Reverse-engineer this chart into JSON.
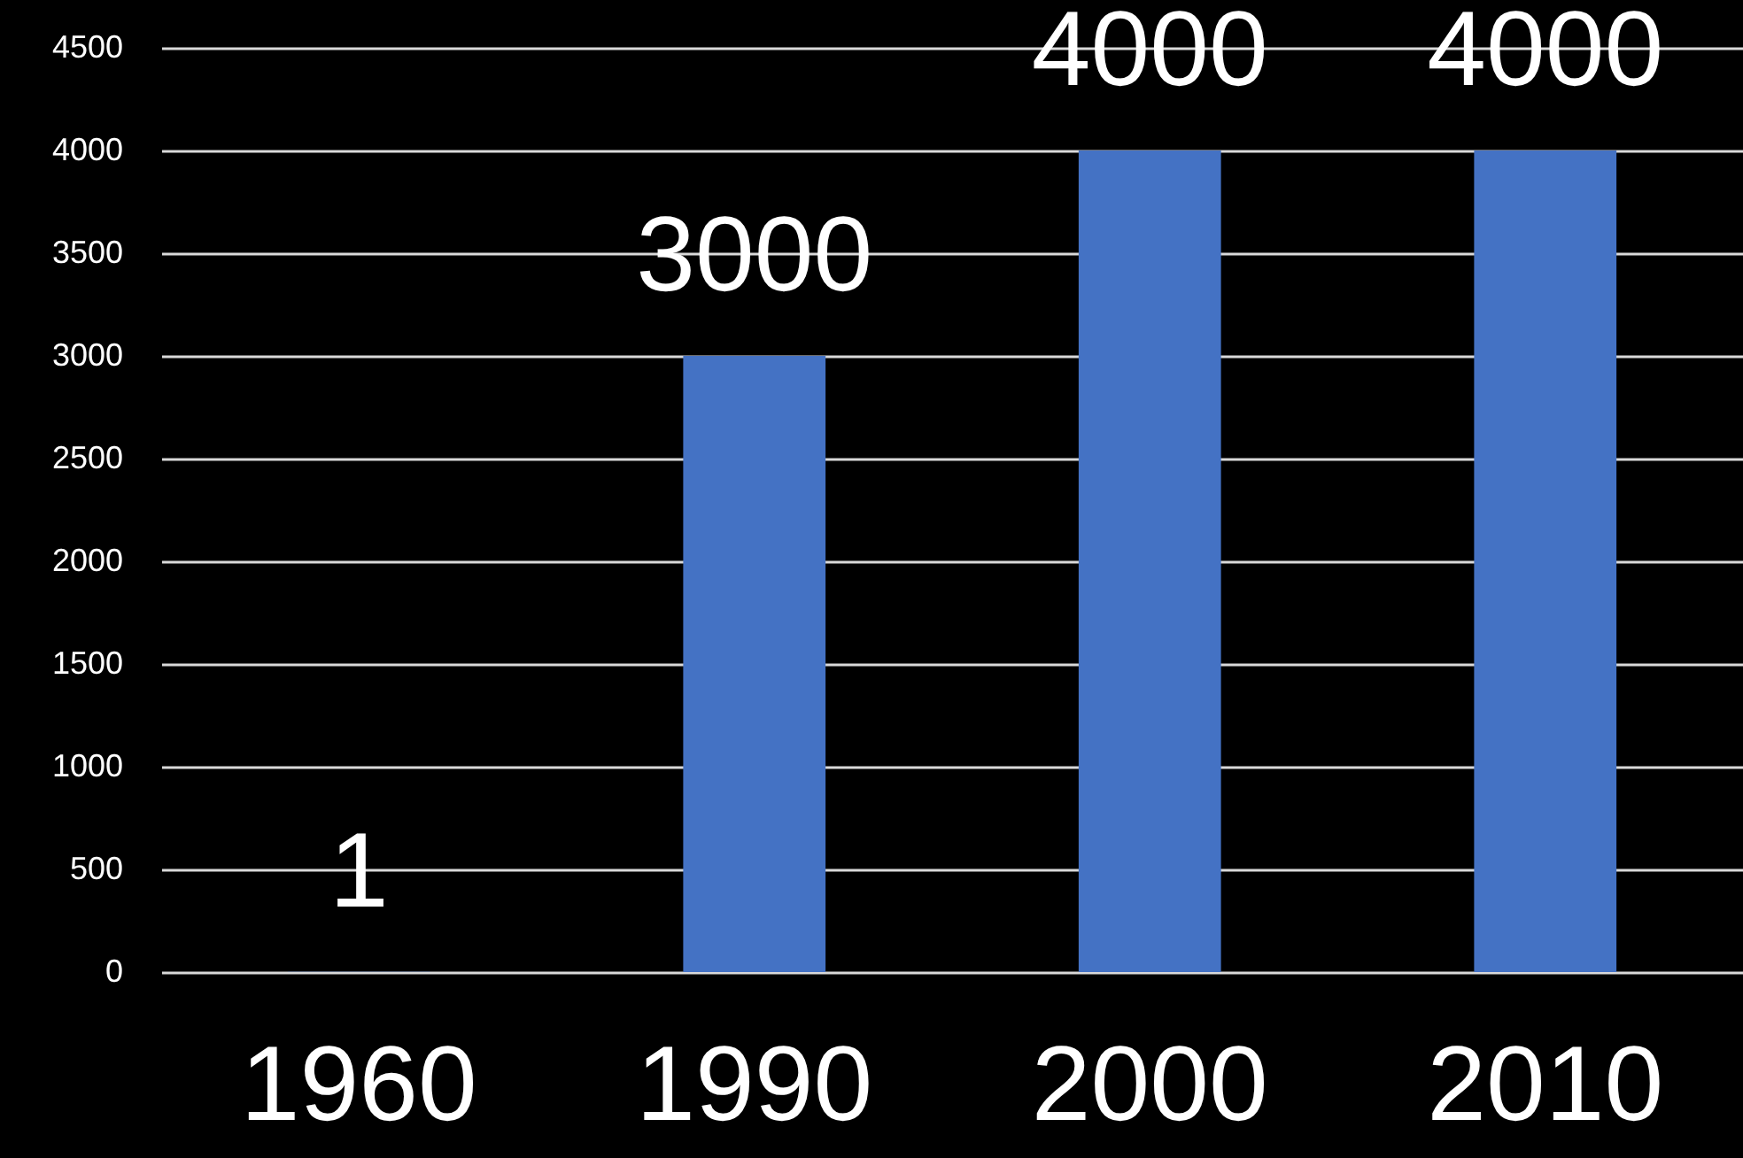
{
  "chart_data": {
    "type": "bar",
    "categories": [
      "1960",
      "1990",
      "2000",
      "2010"
    ],
    "values": [
      1,
      3000,
      4000,
      4000
    ],
    "color": "#4472c4",
    "ylim": [
      0,
      4500
    ],
    "yticks": [
      0,
      500,
      1000,
      1500,
      2000,
      2500,
      3000,
      3500,
      4000,
      4500
    ],
    "grid": "y",
    "data_labels": true
  }
}
